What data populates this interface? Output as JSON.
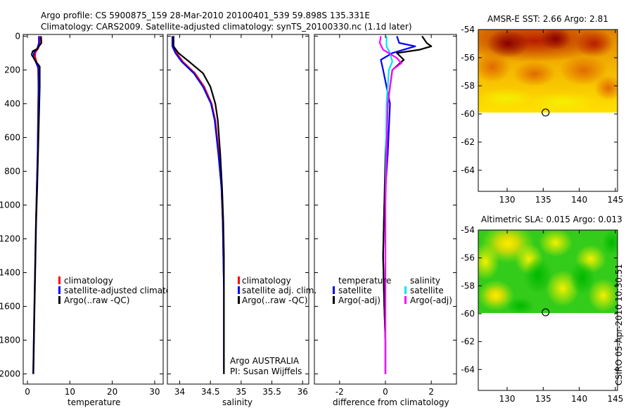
{
  "header": {
    "title_line1": "Argo profile: CS 5900875_159 28-Mar-2010 20100401_539 59.898S 135.331E",
    "title_line2": "Climatology: CARS2009. Satellite-adjusted climatology: synTS_20100330.nc (1.1d later)"
  },
  "colors": {
    "climatology": "#ff0000",
    "satellite": "#0000ff",
    "argo": "#000000",
    "satellite_sal": "#00e5ee",
    "argo_sal": "#ff00ff"
  },
  "chart_data": [
    {
      "type": "line",
      "panel": "temperature",
      "xlabel": "temperature",
      "ylabel": "",
      "xlim": [
        -1,
        32
      ],
      "ylim": [
        2060,
        -10
      ],
      "xticks": [
        0,
        10,
        20,
        30
      ],
      "yticks": [
        0,
        200,
        400,
        600,
        800,
        1000,
        1200,
        1400,
        1600,
        1800,
        2000
      ],
      "y_reversed": true,
      "series": [
        {
          "name": "climatology",
          "color": "#ff0000",
          "x": [
            2.9,
            2.9,
            2.5,
            1.9,
            1.8,
            2.1,
            2.5,
            2.6,
            2.5,
            2.4,
            2.2,
            2.0,
            1.85,
            1.7,
            1.55,
            1.45,
            1.35
          ],
          "y": [
            0,
            40,
            75,
            95,
            120,
            150,
            190,
            300,
            500,
            700,
            900,
            1100,
            1300,
            1500,
            1700,
            1850,
            2000
          ]
        },
        {
          "name": "satellite-adjusted climatology",
          "color": "#0000ff",
          "x": [
            2.7,
            2.7,
            2.3,
            1.6,
            1.4,
            1.9,
            2.6,
            2.6,
            2.5,
            2.4,
            2.2,
            2.0,
            1.85,
            1.7,
            1.55,
            1.45,
            1.35
          ],
          "y": [
            0,
            40,
            75,
            95,
            120,
            150,
            190,
            300,
            500,
            700,
            900,
            1100,
            1300,
            1500,
            1700,
            1850,
            2000
          ]
        },
        {
          "name": "Argo(..raw -QC)",
          "color": "#000000",
          "x": [
            3.2,
            3.3,
            2.3,
            1.2,
            1.0,
            1.7,
            2.9,
            2.9,
            2.7,
            2.5,
            2.3,
            2.05,
            1.9,
            1.75,
            1.6,
            1.5,
            1.4
          ],
          "y": [
            0,
            40,
            75,
            90,
            110,
            140,
            180,
            300,
            500,
            700,
            900,
            1100,
            1300,
            1500,
            1700,
            1850,
            2000
          ]
        }
      ],
      "legend": [
        "climatology",
        "satellite-adjusted climatology",
        "Argo(..raw -QC)"
      ],
      "legend_position": "lower-middle"
    },
    {
      "type": "line",
      "panel": "salinity",
      "xlabel": "salinity",
      "ylabel": "",
      "xlim": [
        33.8,
        36.1
      ],
      "ylim": [
        2060,
        -10
      ],
      "xticks": [
        34,
        34.5,
        35,
        35.5,
        36
      ],
      "y_reversed": true,
      "series": [
        {
          "name": "climatology",
          "color": "#ff0000",
          "x": [
            33.9,
            33.9,
            33.95,
            34.05,
            34.25,
            34.4,
            34.52,
            34.58,
            34.64,
            34.68,
            34.7,
            34.71,
            34.72,
            34.72,
            34.72,
            34.72
          ],
          "y": [
            0,
            60,
            100,
            150,
            220,
            300,
            400,
            500,
            700,
            900,
            1100,
            1300,
            1500,
            1700,
            1850,
            2000
          ]
        },
        {
          "name": "satellite adj. clim.",
          "color": "#0000ff",
          "x": [
            33.88,
            33.88,
            33.93,
            34.03,
            34.23,
            34.38,
            34.51,
            34.57,
            34.63,
            34.68,
            34.7,
            34.71,
            34.72,
            34.72,
            34.72,
            34.72
          ],
          "y": [
            0,
            60,
            100,
            150,
            220,
            300,
            400,
            500,
            700,
            900,
            1100,
            1300,
            1500,
            1700,
            1850,
            2000
          ]
        },
        {
          "name": "Argo(..raw -QC)",
          "color": "#000000",
          "x": [
            33.9,
            33.9,
            33.98,
            34.15,
            34.38,
            34.5,
            34.58,
            34.62,
            34.66,
            34.69,
            34.71,
            34.72,
            34.72,
            34.72,
            34.72,
            34.72
          ],
          "y": [
            0,
            60,
            100,
            150,
            220,
            300,
            400,
            500,
            700,
            900,
            1100,
            1300,
            1500,
            1700,
            1850,
            2000
          ]
        }
      ],
      "legend": [
        "climatology",
        "satellite adj. clim.",
        "Argo(..raw -QC)"
      ],
      "legend_position": "lower-middle",
      "annotation": [
        "Argo AUSTRALIA",
        "PI: Susan Wijffels"
      ]
    },
    {
      "type": "line",
      "panel": "difference",
      "xlabel": "difference from climatology",
      "ylabel": "",
      "xlim": [
        -3.1,
        3.1
      ],
      "ylim": [
        2060,
        -10
      ],
      "xticks": [
        -2,
        0,
        2
      ],
      "y_reversed": true,
      "series": [
        {
          "name": "temperature satellite",
          "color": "#0000ff",
          "x": [
            0.5,
            0.6,
            1.3,
            0.8,
            0.3,
            -0.2,
            -0.1,
            0.2,
            0.1,
            -0.05,
            -0.1,
            -0.05,
            0.0,
            0.0
          ],
          "y": [
            0,
            40,
            60,
            80,
            100,
            140,
            200,
            400,
            700,
            1000,
            1300,
            1600,
            1800,
            2000
          ]
        },
        {
          "name": "temperature Argo(-adj)",
          "color": "#000000",
          "x": [
            1.6,
            1.8,
            2.0,
            1.5,
            0.5,
            0.8,
            0.3,
            0.1,
            0.0,
            -0.05,
            -0.1,
            -0.05,
            0.0,
            0.0
          ],
          "y": [
            0,
            40,
            60,
            80,
            100,
            140,
            200,
            400,
            700,
            1000,
            1300,
            1600,
            1800,
            2000
          ]
        },
        {
          "name": "salinity satellite",
          "color": "#00e5ee",
          "x": [
            0.05,
            0.05,
            0.2,
            0.3,
            0.15,
            0.05,
            0.02,
            0.0,
            0.0,
            0.0,
            0.0,
            0.0
          ],
          "y": [
            0,
            60,
            100,
            150,
            200,
            400,
            700,
            1000,
            1300,
            1600,
            1800,
            2000
          ]
        },
        {
          "name": "salinity Argo(-adj)",
          "color": "#ff00ff",
          "x": [
            -0.2,
            -0.25,
            -0.1,
            0.5,
            0.7,
            0.3,
            0.1,
            0.05,
            0.0,
            0.0,
            0.0,
            0.0
          ],
          "y": [
            0,
            40,
            80,
            130,
            160,
            200,
            400,
            700,
            1000,
            1300,
            1600,
            2000
          ]
        }
      ],
      "legend_groups": [
        {
          "title": "temperature",
          "items": [
            {
              "label": "satellite",
              "color": "#0000ff"
            },
            {
              "label": "Argo(-adj)",
              "color": "#000000"
            }
          ]
        },
        {
          "title": "salinity",
          "items": [
            {
              "label": "satellite",
              "color": "#00e5ee"
            },
            {
              "label": "Argo(-adj)",
              "color": "#ff00ff"
            }
          ]
        }
      ]
    },
    {
      "type": "heatmap",
      "panel": "sst_map",
      "title": "AMSR-E SST: 2.66  Argo: 2.81",
      "xlim": [
        126,
        145.3
      ],
      "ylim": [
        -65.5,
        -54
      ],
      "xticks": [
        130,
        135,
        140,
        145
      ],
      "yticks": [
        -54,
        -56,
        -58,
        -60,
        -62,
        -64
      ],
      "data_lat_range": [
        -60.1,
        -54
      ],
      "marker": {
        "lon": 135.331,
        "lat": -59.898
      }
    },
    {
      "type": "heatmap",
      "panel": "sla_map",
      "title": "Altimetric SLA: 0.015  Argo: 0.013",
      "xlim": [
        126,
        145.3
      ],
      "ylim": [
        -65.5,
        -54
      ],
      "xticks": [
        130,
        135,
        140,
        145
      ],
      "yticks": [
        -54,
        -56,
        -58,
        -60,
        -62,
        -64
      ],
      "data_lat_range": [
        -60.1,
        -54
      ],
      "marker": {
        "lon": 135.331,
        "lat": -59.898
      }
    }
  ],
  "footer": {
    "stamp": "CSIRO 05-Apr-2010 10:30:51"
  }
}
